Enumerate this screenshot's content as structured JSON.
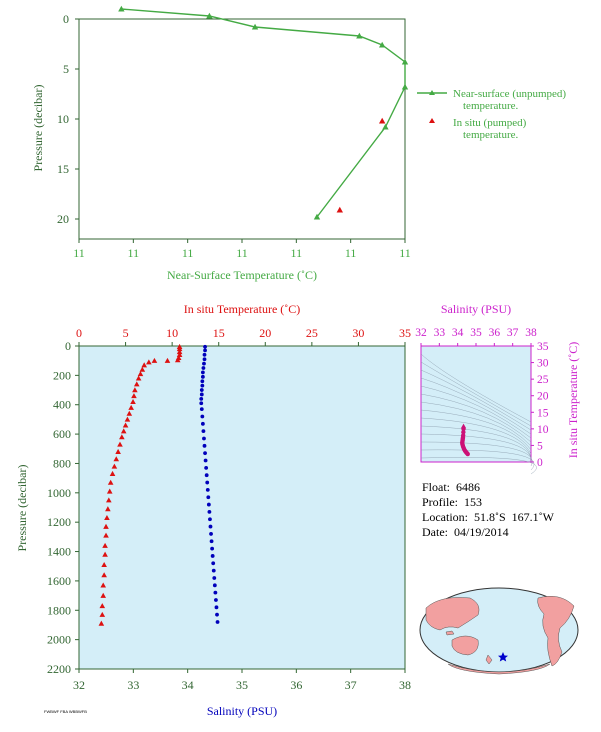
{
  "chart_data": [
    {
      "type": "line",
      "xlabel": "Near-Surface Temperature (˚C)",
      "ylabel": "Pressure (decibar)",
      "x_tick_labels": [
        "11",
        "11",
        "11",
        "11",
        "11",
        "11",
        "11"
      ],
      "y_ticks": [
        0,
        5,
        10,
        15,
        20
      ],
      "ylim": [
        0,
        22
      ],
      "y_inverted": true,
      "x_axis_note": "tick labels all print 11; points located by fraction of axis width",
      "series": [
        {
          "name": "Near-surface (unpumped) temperature.",
          "legend_lines": [
            "Near-surface (unpumped)",
            "temperature."
          ],
          "color": "#44aa44",
          "marker": "triangle",
          "x_frac": [
            0.13,
            0.4,
            0.54,
            0.86,
            0.93,
            1.0,
            1.0,
            0.94,
            0.73
          ],
          "y": [
            -1.0,
            -0.3,
            0.8,
            1.7,
            2.6,
            4.3,
            6.8,
            10.8,
            19.8
          ]
        },
        {
          "name": "In situ (pumped) temperature.",
          "legend_lines": [
            "In situ (pumped)",
            "temperature."
          ],
          "color": "#dd1111",
          "marker": "triangle",
          "x_frac": [
            0.93,
            0.8
          ],
          "y": [
            10.2,
            19.1
          ]
        }
      ]
    },
    {
      "type": "scatter",
      "ylabel": "Pressure (decibar)",
      "ylim": [
        0,
        2200
      ],
      "y_inverted": true,
      "y_ticks": [
        0,
        200,
        400,
        600,
        800,
        1000,
        1200,
        1400,
        1600,
        1800,
        2000,
        2200
      ],
      "x_top": {
        "label": "In situ Temperature (˚C)",
        "ticks": [
          0,
          5,
          10,
          15,
          20,
          25,
          30,
          35
        ],
        "range": [
          0,
          35
        ],
        "color": "#dd1111"
      },
      "x_bottom": {
        "label": "Salinity (PSU)",
        "ticks": [
          32,
          33,
          34,
          35,
          36,
          37,
          38
        ],
        "range": [
          32,
          38
        ],
        "color": "#0000bb"
      },
      "series": [
        {
          "name": "In situ Temperature",
          "axis": "top",
          "color": "#dd1111",
          "marker": "triangle",
          "points": [
            [
              10.8,
              5
            ],
            [
              10.8,
              20
            ],
            [
              10.8,
              40
            ],
            [
              10.8,
              60
            ],
            [
              10.7,
              80
            ],
            [
              10.6,
              95
            ],
            [
              9.5,
              100
            ],
            [
              8.1,
              100
            ],
            [
              7.5,
              110
            ],
            [
              7.0,
              130
            ],
            [
              6.8,
              160
            ],
            [
              6.6,
              190
            ],
            [
              6.4,
              220
            ],
            [
              6.2,
              260
            ],
            [
              6.0,
              300
            ],
            [
              5.9,
              340
            ],
            [
              5.8,
              380
            ],
            [
              5.6,
              420
            ],
            [
              5.4,
              460
            ],
            [
              5.2,
              500
            ],
            [
              5.0,
              540
            ],
            [
              4.8,
              580
            ],
            [
              4.6,
              620
            ],
            [
              4.4,
              670
            ],
            [
              4.2,
              720
            ],
            [
              4.0,
              770
            ],
            [
              3.8,
              820
            ],
            [
              3.6,
              870
            ],
            [
              3.4,
              930
            ],
            [
              3.3,
              990
            ],
            [
              3.2,
              1050
            ],
            [
              3.1,
              1110
            ],
            [
              3.0,
              1170
            ],
            [
              2.9,
              1230
            ],
            [
              2.9,
              1290
            ],
            [
              2.8,
              1360
            ],
            [
              2.8,
              1420
            ],
            [
              2.7,
              1490
            ],
            [
              2.7,
              1560
            ],
            [
              2.6,
              1630
            ],
            [
              2.6,
              1700
            ],
            [
              2.5,
              1770
            ],
            [
              2.5,
              1830
            ],
            [
              2.4,
              1890
            ]
          ]
        },
        {
          "name": "Salinity",
          "axis": "bottom",
          "color": "#0000bb",
          "marker": "dot",
          "points": [
            [
              34.32,
              5
            ],
            [
              34.32,
              30
            ],
            [
              34.31,
              60
            ],
            [
              34.31,
              90
            ],
            [
              34.3,
              120
            ],
            [
              34.29,
              150
            ],
            [
              34.28,
              180
            ],
            [
              34.28,
              210
            ],
            [
              34.27,
              240
            ],
            [
              34.27,
              270
            ],
            [
              34.26,
              300
            ],
            [
              34.26,
              330
            ],
            [
              34.25,
              360
            ],
            [
              34.25,
              390
            ],
            [
              34.26,
              430
            ],
            [
              34.27,
              480
            ],
            [
              34.28,
              530
            ],
            [
              34.29,
              580
            ],
            [
              34.3,
              630
            ],
            [
              34.31,
              680
            ],
            [
              34.32,
              730
            ],
            [
              34.33,
              780
            ],
            [
              34.34,
              830
            ],
            [
              34.35,
              880
            ],
            [
              34.36,
              930
            ],
            [
              34.37,
              980
            ],
            [
              34.38,
              1030
            ],
            [
              34.39,
              1080
            ],
            [
              34.4,
              1130
            ],
            [
              34.41,
              1180
            ],
            [
              34.42,
              1230
            ],
            [
              34.43,
              1280
            ],
            [
              34.44,
              1330
            ],
            [
              34.45,
              1380
            ],
            [
              34.46,
              1430
            ],
            [
              34.47,
              1480
            ],
            [
              34.48,
              1530
            ],
            [
              34.49,
              1580
            ],
            [
              34.5,
              1630
            ],
            [
              34.51,
              1680
            ],
            [
              34.52,
              1730
            ],
            [
              34.53,
              1780
            ],
            [
              34.54,
              1830
            ],
            [
              34.55,
              1880
            ]
          ]
        }
      ]
    },
    {
      "type": "scatter",
      "xlabel": "Salinity (PSU)",
      "ylabel": "In situ Temperature (˚C)",
      "x_ticks": [
        32,
        33,
        34,
        35,
        36,
        37,
        38
      ],
      "y_ticks": [
        0,
        5,
        10,
        15,
        20,
        25,
        30,
        35
      ],
      "xlim": [
        32,
        38
      ],
      "ylim": [
        0,
        35
      ],
      "color": "#cc1177",
      "points": [
        [
          34.32,
          10.8
        ],
        [
          34.32,
          10.0
        ],
        [
          34.31,
          9.0
        ],
        [
          34.3,
          8.0
        ],
        [
          34.29,
          7.4
        ],
        [
          34.28,
          7.0
        ],
        [
          34.27,
          6.6
        ],
        [
          34.26,
          6.2
        ],
        [
          34.25,
          5.8
        ],
        [
          34.26,
          5.4
        ],
        [
          34.28,
          5.0
        ],
        [
          34.3,
          4.6
        ],
        [
          34.33,
          4.2
        ],
        [
          34.36,
          3.8
        ],
        [
          34.4,
          3.4
        ],
        [
          34.44,
          3.1
        ],
        [
          34.48,
          2.8
        ],
        [
          34.52,
          2.6
        ],
        [
          34.55,
          2.4
        ]
      ]
    }
  ],
  "float_info": {
    "float": "Float:  6486",
    "profile": "Profile:  153",
    "location": "Location:  51.8˚S  167.1˚W",
    "date": "Date:  04/19/2014"
  },
  "map": {
    "ocean_color": "#d4eef8",
    "land_color": "#f2a0a0",
    "marker_color": "#0000cc"
  },
  "stamp": "FWBWF FBA WBBWFB",
  "colors": {
    "axis_green": "#336633",
    "plot_bg": "#d4eef8",
    "line_green": "#44aa44",
    "temp_red": "#dd1111",
    "sal_blue": "#0000bb",
    "ts_magenta": "#cc22cc"
  }
}
